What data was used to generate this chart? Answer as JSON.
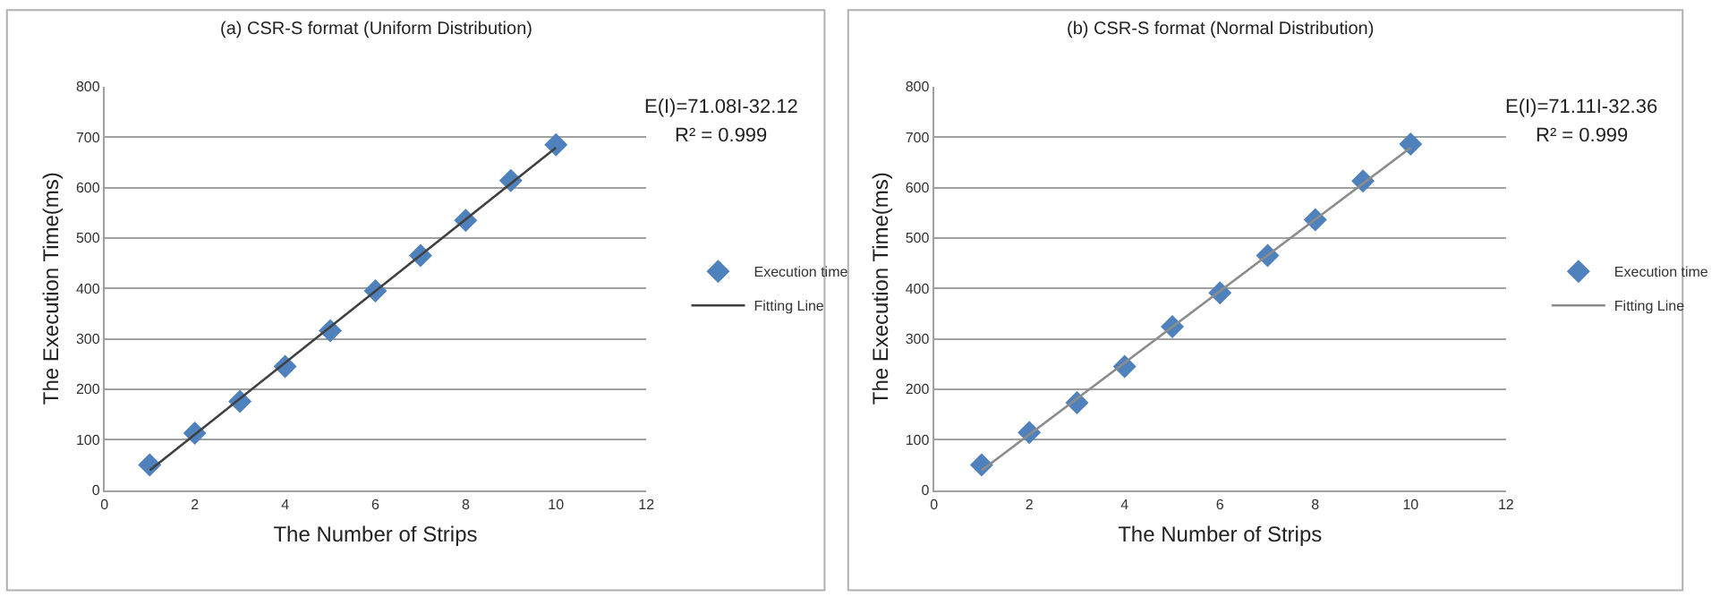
{
  "chart_data": [
    {
      "type": "scatter",
      "title": "(a) CSR-S format (Uniform Distribution)",
      "xlabel": "The Number of Strips",
      "ylabel": "The Execution Time(ms)",
      "annotations": [
        "E(I)=71.08I-32.12",
        "R² = 0.999"
      ],
      "xlim": [
        0,
        12
      ],
      "xticks": [
        0,
        2,
        4,
        6,
        8,
        10,
        12
      ],
      "ylim": [
        0,
        800
      ],
      "yticks": [
        0,
        100,
        200,
        300,
        400,
        500,
        600,
        700,
        800
      ],
      "grid": "y",
      "legend": "right",
      "series": [
        {
          "name": "Execution time",
          "marker": "diamond",
          "color": "#4f81bd",
          "x": [
            1,
            2,
            3,
            4,
            5,
            6,
            7,
            8,
            9,
            10
          ],
          "values": [
            50,
            113,
            176,
            245,
            316,
            395,
            465,
            535,
            614,
            685
          ]
        },
        {
          "name": "Fitting Line",
          "type": "line",
          "marker": "none",
          "line_style": "solid",
          "color": "#404040",
          "x": [
            1,
            10
          ],
          "values": [
            39,
            679
          ]
        }
      ]
    },
    {
      "type": "scatter",
      "title": "(b) CSR-S format (Normal Distribution)",
      "xlabel": "The Number of Strips",
      "ylabel": "The Execution Time(ms)",
      "annotations": [
        "E(I)=71.11I-32.36",
        "R² = 0.999"
      ],
      "xlim": [
        0,
        12
      ],
      "xticks": [
        0,
        2,
        4,
        6,
        8,
        10,
        12
      ],
      "ylim": [
        0,
        800
      ],
      "yticks": [
        0,
        100,
        200,
        300,
        400,
        500,
        600,
        700,
        800
      ],
      "grid": "y",
      "legend": "right",
      "series": [
        {
          "name": "Execution time",
          "marker": "diamond",
          "color": "#4f81bd",
          "x": [
            1,
            2,
            3,
            4,
            5,
            6,
            7,
            8,
            9,
            10
          ],
          "values": [
            50,
            114,
            173,
            245,
            324,
            391,
            465,
            536,
            613,
            686
          ]
        },
        {
          "name": "Fitting Line",
          "type": "line",
          "marker": "none",
          "line_style": "solid",
          "color": "#8c8c8c",
          "x": [
            1,
            10
          ],
          "values": [
            39,
            679
          ]
        }
      ]
    }
  ]
}
